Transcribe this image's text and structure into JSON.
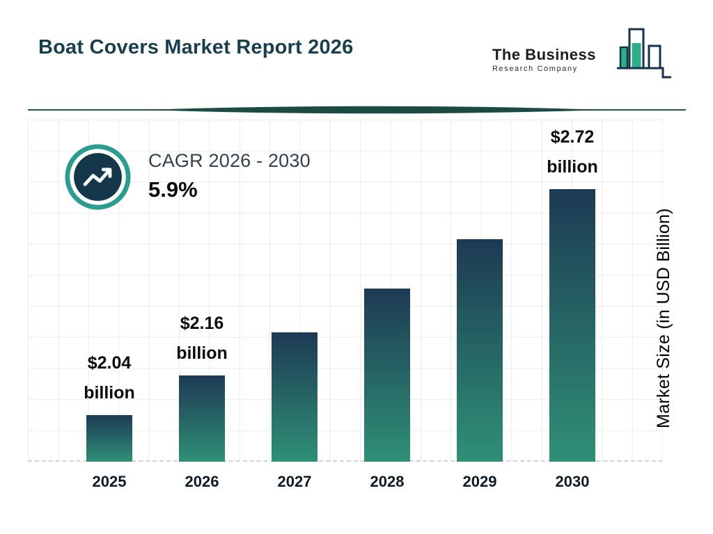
{
  "header": {
    "title": "Boat Covers Market Report 2026"
  },
  "logo": {
    "line1": "The Business",
    "line2": "Research Company"
  },
  "cagr": {
    "label": "CAGR 2026 - 2030",
    "value": "5.9%"
  },
  "chart_data": {
    "type": "bar",
    "title": "Boat Covers Market Report 2026",
    "categories": [
      "2025",
      "2026",
      "2027",
      "2028",
      "2029",
      "2030"
    ],
    "values": [
      2.04,
      2.16,
      2.29,
      2.42,
      2.57,
      2.72
    ],
    "value_labels": [
      "$2.04 billion",
      "$2.16 billion",
      null,
      null,
      null,
      "$2.72 billion"
    ],
    "xlabel": "",
    "ylabel": "Market Size (in USD Billion)",
    "unit": "USD Billion",
    "ylim": [
      1.9,
      2.72
    ],
    "grid": true,
    "legend": false,
    "bar_gradient": {
      "top": "#1d3a53",
      "bottom": "#2f9076"
    },
    "accent_color": "#2a9d8f",
    "dark_color": "#14384a",
    "title_color": "#173f4c"
  }
}
